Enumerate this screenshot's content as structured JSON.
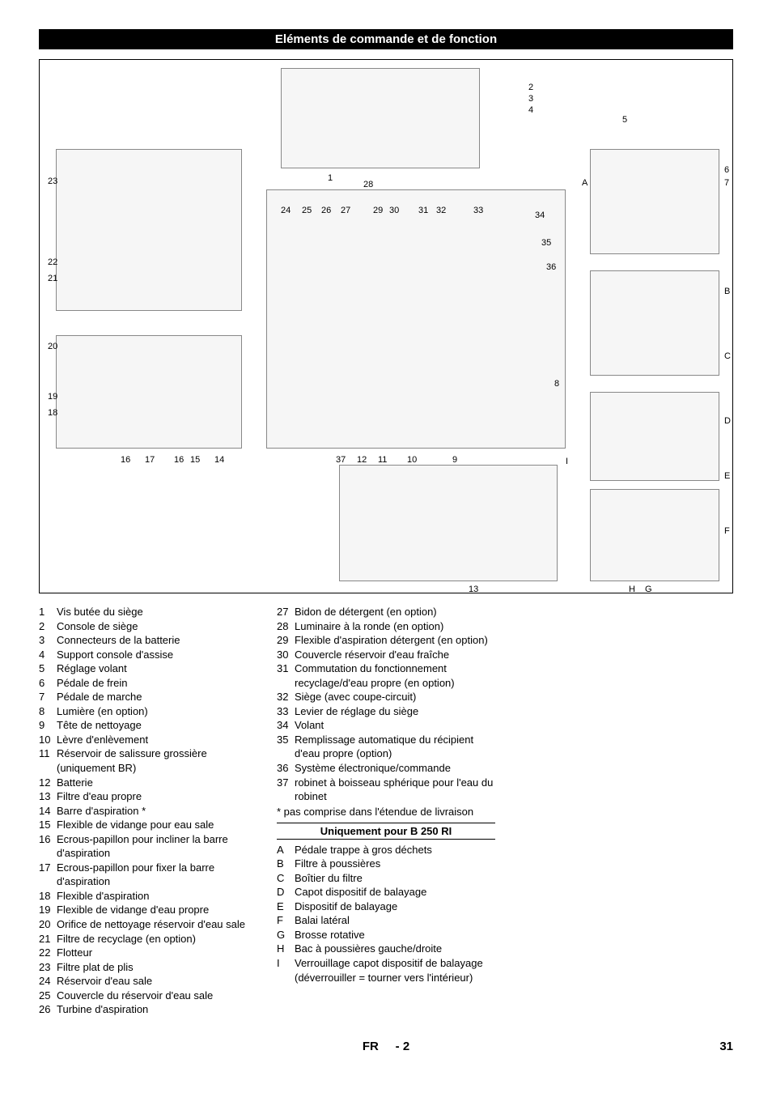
{
  "title": "Eléments de commande et de fonction",
  "diagram": {
    "callouts_top": [
      "2",
      "3",
      "4",
      "5"
    ],
    "callouts_right": [
      "6",
      "7",
      "A",
      "B",
      "C",
      "8",
      "D",
      "E",
      "F",
      "H",
      "G",
      "I"
    ],
    "callouts_left": [
      "23",
      "22",
      "21",
      "20",
      "19",
      "18"
    ],
    "callouts_mid": [
      "1",
      "28",
      "24",
      "25",
      "26",
      "27",
      "29",
      "30",
      "31",
      "32",
      "33",
      "34",
      "35",
      "36"
    ],
    "callouts_bottom_left": [
      "16",
      "17",
      "16",
      "15",
      "14"
    ],
    "callouts_bottom_mid": [
      "37",
      "12",
      "11",
      "10",
      "9",
      "13"
    ]
  },
  "numbered_items": [
    {
      "n": "1",
      "t": "Vis butée du siège"
    },
    {
      "n": "2",
      "t": "Console de siège"
    },
    {
      "n": "3",
      "t": "Connecteurs de la batterie"
    },
    {
      "n": "4",
      "t": "Support console d'assise"
    },
    {
      "n": "5",
      "t": "Réglage volant"
    },
    {
      "n": "6",
      "t": "Pédale de frein"
    },
    {
      "n": "7",
      "t": "Pédale de marche"
    },
    {
      "n": "8",
      "t": "Lumière (en option)"
    },
    {
      "n": "9",
      "t": "Tête de nettoyage"
    },
    {
      "n": "10",
      "t": "Lèvre d'enlèvement"
    },
    {
      "n": "11",
      "t": "Réservoir de salissure grossière (uniquement BR)"
    },
    {
      "n": "12",
      "t": "Batterie"
    },
    {
      "n": "13",
      "t": "Filtre d'eau propre"
    },
    {
      "n": "14",
      "t": "Barre d'aspiration *"
    },
    {
      "n": "15",
      "t": "Flexible de vidange pour eau sale"
    },
    {
      "n": "16",
      "t": "Ecrous-papillon pour incliner la barre d'aspiration"
    },
    {
      "n": "17",
      "t": "Ecrous-papillon pour fixer la barre d'aspiration"
    },
    {
      "n": "18",
      "t": "Flexible d'aspiration"
    },
    {
      "n": "19",
      "t": "Flexible de vidange d'eau propre"
    },
    {
      "n": "20",
      "t": "Orifice de nettoyage réservoir d'eau sale"
    },
    {
      "n": "21",
      "t": "Filtre de recyclage (en option)"
    },
    {
      "n": "22",
      "t": "Flotteur"
    },
    {
      "n": "23",
      "t": "Filtre plat de plis"
    },
    {
      "n": "24",
      "t": "Réservoir d'eau sale"
    },
    {
      "n": "25",
      "t": "Couvercle du réservoir d'eau sale"
    },
    {
      "n": "26",
      "t": "Turbine d'aspiration"
    },
    {
      "n": "27",
      "t": "Bidon de détergent (en option)"
    },
    {
      "n": "28",
      "t": "Luminaire à la ronde (en option)"
    },
    {
      "n": "29",
      "t": "Flexible d'aspiration détergent (en option)"
    },
    {
      "n": "30",
      "t": "Couvercle réservoir d'eau fraîche"
    },
    {
      "n": "31",
      "t": "Commutation du fonctionnement recyclage/d'eau propre (en option)"
    },
    {
      "n": "32",
      "t": "Siège (avec coupe-circuit)"
    },
    {
      "n": "33",
      "t": "Levier de réglage du siège"
    },
    {
      "n": "34",
      "t": "Volant"
    },
    {
      "n": "35",
      "t": "Remplissage automatique du récipient d'eau propre (option)"
    },
    {
      "n": "36",
      "t": "Système électronique/commande"
    },
    {
      "n": "37",
      "t": "robinet à boisseau sphérique pour l'eau du robinet"
    }
  ],
  "note": "* pas comprise dans l'étendue de livraison",
  "sub_heading": "Uniquement pour B 250 RI",
  "lettered_items": [
    {
      "n": "A",
      "t": "Pédale trappe à gros déchets"
    },
    {
      "n": "B",
      "t": "Filtre à poussières"
    },
    {
      "n": "C",
      "t": "Boîtier du filtre"
    },
    {
      "n": "D",
      "t": "Capot dispositif de balayage"
    },
    {
      "n": "E",
      "t": "Dispositif de balayage"
    },
    {
      "n": "F",
      "t": "Balai latéral"
    },
    {
      "n": "G",
      "t": "Brosse rotative"
    },
    {
      "n": "H",
      "t": "Bac à poussières gauche/droite"
    },
    {
      "n": "I",
      "t": "Verrouillage capot dispositif de balayage (déverrouiller = tourner vers l'intérieur)"
    }
  ],
  "footer": {
    "lang": "FR",
    "sep": "-",
    "sub": "2",
    "page": "31"
  },
  "colors": {
    "text": "#000000",
    "bg": "#ffffff",
    "titlebar_bg": "#000000",
    "titlebar_fg": "#ffffff",
    "border": "#000000"
  }
}
